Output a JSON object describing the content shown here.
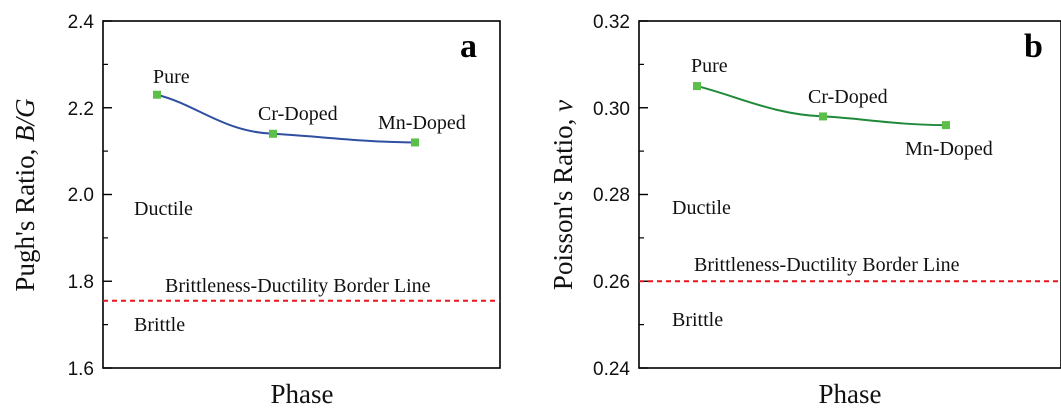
{
  "chart_data": [
    {
      "type": "line",
      "panel_label": "a",
      "xlabel": "Phase",
      "ylabel_text": "Pugh's Ratio, ",
      "ylabel_math": "B/G",
      "ylim": [
        1.6,
        2.4
      ],
      "yticks": [
        "1.6",
        "1.8",
        "2.0",
        "2.2",
        "2.4"
      ],
      "categories": [
        "Pure",
        "Cr-Doped",
        "Mn-Doped"
      ],
      "values": [
        2.23,
        2.14,
        2.12
      ],
      "line_color": "#2f4fa0",
      "marker_color": "#5cbf4a",
      "border_value": 1.755,
      "border_label": "Brittleness-Ductility Border Line",
      "border_color": "#e8141e",
      "upper_region": "Ductile",
      "lower_region": "Brittle"
    },
    {
      "type": "line",
      "panel_label": "b",
      "xlabel": "Phase",
      "ylabel_text": "Poisson's Ratio, ",
      "ylabel_math": "v",
      "ylim": [
        0.24,
        0.32
      ],
      "yticks": [
        "0.24",
        "0.26",
        "0.28",
        "0.30",
        "0.32"
      ],
      "categories": [
        "Pure",
        "Cr-Doped",
        "Mn-Doped"
      ],
      "values": [
        0.305,
        0.298,
        0.296
      ],
      "line_color": "#1f8a3a",
      "marker_color": "#5cbf4a",
      "border_value": 0.26,
      "border_label": "Brittleness-Ductility Border Line",
      "border_color": "#e8141e",
      "upper_region": "Ductile",
      "lower_region": "Brittle"
    }
  ]
}
